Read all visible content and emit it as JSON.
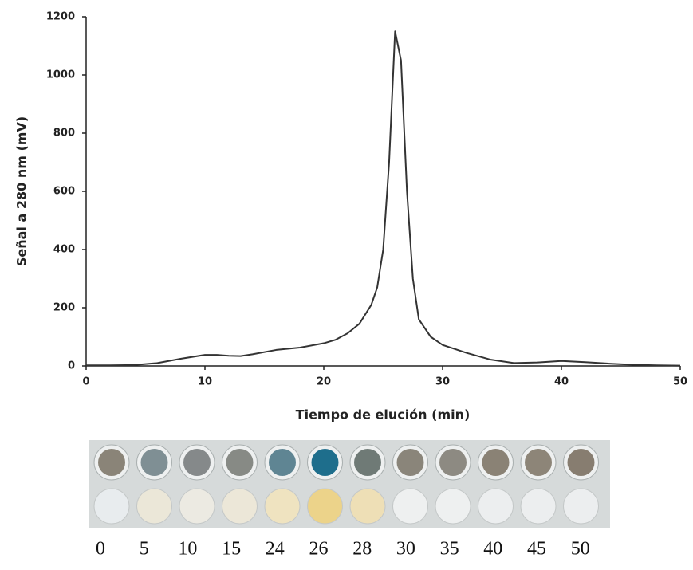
{
  "chart_data": {
    "type": "line",
    "xlabel": "Tiempo de elución (min)",
    "ylabel": "Señal a 280 nm (mV)",
    "x": [
      0,
      2,
      4,
      6,
      8,
      10,
      11,
      12,
      13,
      14,
      16,
      18,
      20,
      21,
      22,
      23,
      24,
      24.5,
      25,
      25.5,
      26,
      26.5,
      27,
      27.5,
      28,
      29,
      30,
      32,
      34,
      36,
      38,
      40,
      42,
      44,
      46,
      48,
      50
    ],
    "values": [
      2,
      2,
      3,
      10,
      25,
      38,
      38,
      35,
      34,
      40,
      55,
      63,
      78,
      90,
      112,
      145,
      210,
      270,
      400,
      700,
      1150,
      1050,
      600,
      300,
      160,
      100,
      72,
      45,
      22,
      10,
      12,
      17,
      13,
      8,
      4,
      2,
      1
    ],
    "color": "#333333",
    "xlim": [
      0,
      50
    ],
    "xticks": [
      0,
      10,
      20,
      30,
      40,
      50
    ],
    "ylim": [
      0,
      1200
    ],
    "yticks": [
      0,
      200,
      400,
      600,
      800,
      1000,
      1200
    ]
  },
  "well_plate": {
    "labels": [
      "0",
      "5",
      "10",
      "15",
      "24",
      "26",
      "28",
      "30",
      "35",
      "40",
      "45",
      "50"
    ],
    "top_colors": [
      "#8a8478",
      "#7f8f94",
      "#85898a",
      "#878a85",
      "#5f8593",
      "#1e6e8c",
      "#6f7a76",
      "#8a857a",
      "#8d8a82",
      "#8a8275",
      "#8d8578",
      "#877d70"
    ],
    "bottom_colors": [
      "#e8ecee",
      "#ebe7d8",
      "#eceae2",
      "#ece7d8",
      "#efe3c0",
      "#ecd38a",
      "#eedfb6",
      "#eef0f0",
      "#eef0f0",
      "#eceeef",
      "#eceeef",
      "#eceeef"
    ]
  }
}
